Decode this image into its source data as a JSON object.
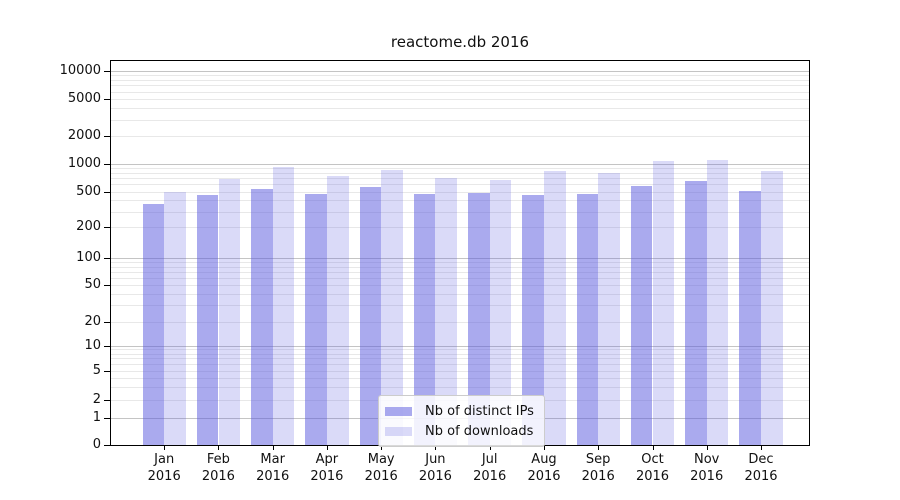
{
  "title": "reactome.db 2016",
  "chart_data": {
    "type": "bar",
    "title": "reactome.db 2016",
    "categories": [
      "Jan 2016",
      "Feb 2016",
      "Mar 2016",
      "Apr 2016",
      "May 2016",
      "Jun 2016",
      "Jul 2016",
      "Aug 2016",
      "Sep 2016",
      "Oct 2016",
      "Nov 2016",
      "Dec 2016"
    ],
    "series": [
      {
        "name": "Nb of distinct IPs",
        "color": "rgba(85,85,221,0.5)",
        "color_hex_on_white": "#aaaaee",
        "values": [
          360,
          460,
          530,
          470,
          560,
          470,
          480,
          455,
          470,
          580,
          655,
          510
        ]
      },
      {
        "name": "Nb of downloads",
        "color": "rgba(85,85,221,0.22)",
        "color_hex_on_white": "#d9d9f7",
        "values": [
          500,
          690,
          920,
          740,
          865,
          705,
          660,
          835,
          785,
          1080,
          1090,
          835
        ]
      }
    ],
    "xlabel": "",
    "ylabel": "",
    "yscale": "symlog",
    "yticks": [
      0,
      1,
      2,
      5,
      10,
      20,
      50,
      100,
      200,
      500,
      1000,
      2000,
      5000,
      10000
    ],
    "ylim": [
      0,
      13000
    ],
    "grid": true,
    "legend_position": "lower center"
  },
  "colors": {
    "bar_base": "#5555dd",
    "grid_major": "#c4c4c4",
    "grid_minor": "#e8e8e8",
    "axis": "#000000",
    "legend_border": "#cccccc",
    "background": "#ffffff"
  }
}
